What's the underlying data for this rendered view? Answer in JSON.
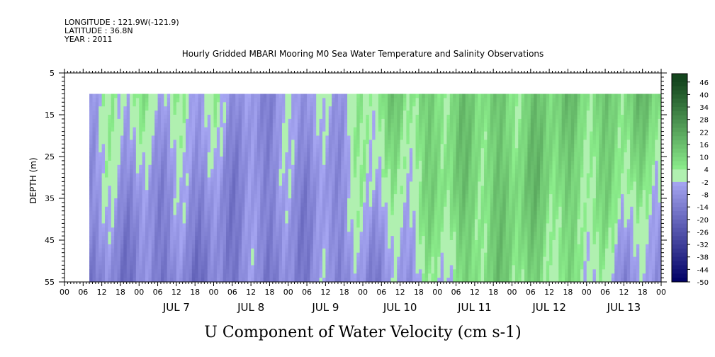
{
  "header": {
    "longitude": "LONGITUDE : 121.9W(-121.9)",
    "latitude": "LATITUDE : 36.8N",
    "year": "YEAR : 2011"
  },
  "chart_data": {
    "type": "heatmap",
    "title": "Hourly Gridded MBARI Mooring M0 Sea Water Temperature and Salinity Observations",
    "xlabel": "U Component of Water Velocity (cm s-1)",
    "ylabel": "DEPTH (m)",
    "ylim": [
      5,
      55
    ],
    "y_reversed": true,
    "y_ticks": [
      5,
      15,
      25,
      35,
      45,
      55
    ],
    "x_start": "JUL 6 00",
    "x_end": "JUL 14 00",
    "hour_tick_labels": [
      "00",
      "06",
      "12",
      "18"
    ],
    "day_labels": [
      "JUL 7",
      "JUL 8",
      "JUL 9",
      "JUL 10",
      "JUL 11",
      "JUL 12",
      "JUL 13"
    ],
    "data_depth_range_m": [
      10,
      55
    ],
    "data_time_start": "JUL 6 08",
    "data_time_end": "JUL 14 00",
    "colorbar": {
      "levels": [
        "46",
        "40",
        "34",
        "28",
        "22",
        "16",
        "10",
        "4",
        "-2",
        "-8",
        "-14",
        "-20",
        "-26",
        "-32",
        "-38",
        "-44",
        "-50"
      ],
      "range": [
        -50,
        50
      ]
    },
    "velocity_by_day_cm_s": [
      {
        "day": "JUL 6 08-24",
        "near_surface": 0,
        "mid_depth": -6,
        "deep": -12
      },
      {
        "day": "JUL 7",
        "near_surface": 3,
        "mid_depth": -8,
        "deep": -14
      },
      {
        "day": "JUL 8",
        "near_surface": -8,
        "mid_depth": -10,
        "deep": -12
      },
      {
        "day": "JUL 9",
        "near_surface": -4,
        "mid_depth": -8,
        "deep": -10
      },
      {
        "day": "JUL 10",
        "near_surface": 10,
        "mid_depth": 4,
        "deep": -8
      },
      {
        "day": "JUL 11",
        "near_surface": 10,
        "mid_depth": 12,
        "deep": 10
      },
      {
        "day": "JUL 12",
        "near_surface": 12,
        "mid_depth": 12,
        "deep": 8
      },
      {
        "day": "JUL 13",
        "near_surface": 12,
        "mid_depth": 4,
        "deep": -6
      }
    ],
    "grid": false
  }
}
